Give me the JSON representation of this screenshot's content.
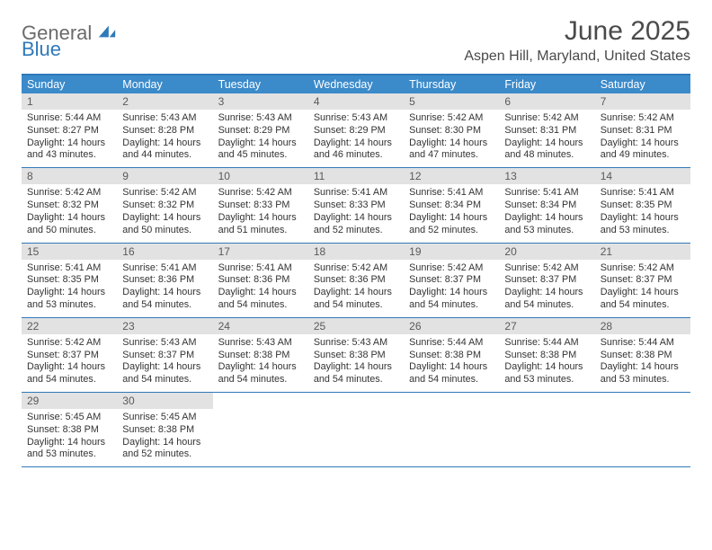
{
  "logo": {
    "text1": "General",
    "text2": "Blue"
  },
  "title": "June 2025",
  "location": "Aspen Hill, Maryland, United States",
  "colors": {
    "header_bg": "#3b8aca",
    "header_text": "#ffffff",
    "rule": "#2f79b9",
    "daynum_bg": "#e2e2e2",
    "daynum_text": "#5a5a5a",
    "body_text": "#333333",
    "title_text": "#4a4a4a",
    "logo_gray": "#6b6b6b",
    "logo_blue": "#2f79b9"
  },
  "dayNames": [
    "Sunday",
    "Monday",
    "Tuesday",
    "Wednesday",
    "Thursday",
    "Friday",
    "Saturday"
  ],
  "weeks": [
    [
      {
        "n": "1",
        "sr": "5:44 AM",
        "ss": "8:27 PM",
        "dl": "14 hours and 43 minutes."
      },
      {
        "n": "2",
        "sr": "5:43 AM",
        "ss": "8:28 PM",
        "dl": "14 hours and 44 minutes."
      },
      {
        "n": "3",
        "sr": "5:43 AM",
        "ss": "8:29 PM",
        "dl": "14 hours and 45 minutes."
      },
      {
        "n": "4",
        "sr": "5:43 AM",
        "ss": "8:29 PM",
        "dl": "14 hours and 46 minutes."
      },
      {
        "n": "5",
        "sr": "5:42 AM",
        "ss": "8:30 PM",
        "dl": "14 hours and 47 minutes."
      },
      {
        "n": "6",
        "sr": "5:42 AM",
        "ss": "8:31 PM",
        "dl": "14 hours and 48 minutes."
      },
      {
        "n": "7",
        "sr": "5:42 AM",
        "ss": "8:31 PM",
        "dl": "14 hours and 49 minutes."
      }
    ],
    [
      {
        "n": "8",
        "sr": "5:42 AM",
        "ss": "8:32 PM",
        "dl": "14 hours and 50 minutes."
      },
      {
        "n": "9",
        "sr": "5:42 AM",
        "ss": "8:32 PM",
        "dl": "14 hours and 50 minutes."
      },
      {
        "n": "10",
        "sr": "5:42 AM",
        "ss": "8:33 PM",
        "dl": "14 hours and 51 minutes."
      },
      {
        "n": "11",
        "sr": "5:41 AM",
        "ss": "8:33 PM",
        "dl": "14 hours and 52 minutes."
      },
      {
        "n": "12",
        "sr": "5:41 AM",
        "ss": "8:34 PM",
        "dl": "14 hours and 52 minutes."
      },
      {
        "n": "13",
        "sr": "5:41 AM",
        "ss": "8:34 PM",
        "dl": "14 hours and 53 minutes."
      },
      {
        "n": "14",
        "sr": "5:41 AM",
        "ss": "8:35 PM",
        "dl": "14 hours and 53 minutes."
      }
    ],
    [
      {
        "n": "15",
        "sr": "5:41 AM",
        "ss": "8:35 PM",
        "dl": "14 hours and 53 minutes."
      },
      {
        "n": "16",
        "sr": "5:41 AM",
        "ss": "8:36 PM",
        "dl": "14 hours and 54 minutes."
      },
      {
        "n": "17",
        "sr": "5:41 AM",
        "ss": "8:36 PM",
        "dl": "14 hours and 54 minutes."
      },
      {
        "n": "18",
        "sr": "5:42 AM",
        "ss": "8:36 PM",
        "dl": "14 hours and 54 minutes."
      },
      {
        "n": "19",
        "sr": "5:42 AM",
        "ss": "8:37 PM",
        "dl": "14 hours and 54 minutes."
      },
      {
        "n": "20",
        "sr": "5:42 AM",
        "ss": "8:37 PM",
        "dl": "14 hours and 54 minutes."
      },
      {
        "n": "21",
        "sr": "5:42 AM",
        "ss": "8:37 PM",
        "dl": "14 hours and 54 minutes."
      }
    ],
    [
      {
        "n": "22",
        "sr": "5:42 AM",
        "ss": "8:37 PM",
        "dl": "14 hours and 54 minutes."
      },
      {
        "n": "23",
        "sr": "5:43 AM",
        "ss": "8:37 PM",
        "dl": "14 hours and 54 minutes."
      },
      {
        "n": "24",
        "sr": "5:43 AM",
        "ss": "8:38 PM",
        "dl": "14 hours and 54 minutes."
      },
      {
        "n": "25",
        "sr": "5:43 AM",
        "ss": "8:38 PM",
        "dl": "14 hours and 54 minutes."
      },
      {
        "n": "26",
        "sr": "5:44 AM",
        "ss": "8:38 PM",
        "dl": "14 hours and 54 minutes."
      },
      {
        "n": "27",
        "sr": "5:44 AM",
        "ss": "8:38 PM",
        "dl": "14 hours and 53 minutes."
      },
      {
        "n": "28",
        "sr": "5:44 AM",
        "ss": "8:38 PM",
        "dl": "14 hours and 53 minutes."
      }
    ],
    [
      {
        "n": "29",
        "sr": "5:45 AM",
        "ss": "8:38 PM",
        "dl": "14 hours and 53 minutes."
      },
      {
        "n": "30",
        "sr": "5:45 AM",
        "ss": "8:38 PM",
        "dl": "14 hours and 52 minutes."
      },
      null,
      null,
      null,
      null,
      null
    ]
  ],
  "labels": {
    "sunrise": "Sunrise:",
    "sunset": "Sunset:",
    "daylight": "Daylight:"
  }
}
